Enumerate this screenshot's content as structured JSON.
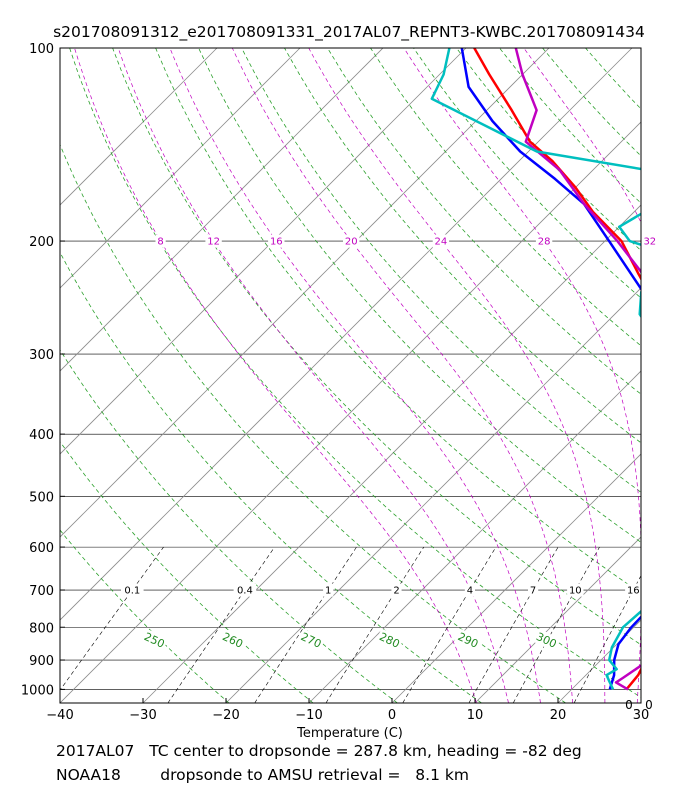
{
  "chart_data": {
    "type": "line",
    "title": "s201708091312_e201708091331_2017AL07_REPNT3-KWBC.201708091434",
    "xlabel": "Temperature (C)",
    "ylabel": "",
    "xlim": [
      -40,
      30
    ],
    "ylim": [
      1050,
      100
    ],
    "y_scale": "log",
    "skew": "skew-T",
    "x_ticks": [
      "−40",
      "−30",
      "−20",
      "−10",
      "0",
      "10",
      "20",
      "30"
    ],
    "y_ticks": [
      "100",
      "200",
      "300",
      "400",
      "500",
      "600",
      "700",
      "800",
      "900",
      "1000"
    ],
    "isotherm_ticks": [
      -100,
      -90,
      -80,
      -70,
      -60,
      -50,
      -40,
      -30,
      -20,
      -10,
      0,
      10,
      20,
      30
    ],
    "mixing_ratio_labels": [
      "0.1",
      "0.4",
      "1",
      "2",
      "4",
      "7",
      "10",
      "16"
    ],
    "mixing_ratio_values": [
      0.1,
      0.4,
      1,
      2,
      4,
      7,
      10,
      16
    ],
    "dry_adiabat_labels": [
      "250",
      "260",
      "270",
      "280",
      "290",
      "300"
    ],
    "dry_adiabat_values": [
      250,
      260,
      270,
      280,
      290,
      300,
      310,
      320,
      330,
      340,
      350,
      360,
      370,
      380,
      390,
      400,
      410,
      420
    ],
    "moist_adiabat_labels": [
      "8",
      "12",
      "16",
      "20",
      "24",
      "28",
      "32"
    ],
    "moist_adiabat_values": [
      8,
      12,
      16,
      20,
      24,
      28,
      32
    ],
    "corner_labels": [
      "0",
      "0"
    ],
    "grid": true,
    "colors": {
      "isotherm": "#8c8c8c",
      "isobar": "#000000",
      "dry_adiabat": "#2ca02c",
      "moist_adiabat": "#c000c0",
      "mixing_ratio": "#000000",
      "dry_adiabat_label": "#228b22",
      "moist_adiabat_label": "#c000c0"
    },
    "series": [
      {
        "color": "#ff0000",
        "points": [
          [
            1000,
            26.6
          ],
          [
            950,
            26.3
          ],
          [
            900,
            25.4
          ],
          [
            850,
            25.4
          ],
          [
            800,
            25.1
          ],
          [
            750,
            24.3
          ],
          [
            700,
            23.8
          ],
          [
            650,
            22.3
          ],
          [
            600,
            20.6
          ],
          [
            550,
            18.6
          ],
          [
            500,
            16.6
          ],
          [
            450,
            13.6
          ],
          [
            400,
            8.5
          ],
          [
            350,
            1.5
          ],
          [
            300,
            -6.5
          ],
          [
            275,
            -11.5
          ],
          [
            250,
            -16.5
          ],
          [
            225,
            -22
          ],
          [
            200,
            -28
          ],
          [
            180,
            -35
          ],
          [
            165,
            -40
          ],
          [
            150,
            -46
          ],
          [
            140,
            -51
          ],
          [
            125,
            -57
          ],
          [
            110,
            -64
          ],
          [
            100,
            -69
          ]
        ]
      },
      {
        "color": "#0000ff",
        "points": [
          [
            1000,
            24.6
          ],
          [
            950,
            23.4
          ],
          [
            900,
            21.6
          ],
          [
            850,
            20.2
          ],
          [
            800,
            19.7
          ],
          [
            750,
            19.6
          ],
          [
            700,
            19.3
          ],
          [
            650,
            17.6
          ],
          [
            600,
            16.2
          ],
          [
            550,
            14.5
          ],
          [
            500,
            12.6
          ],
          [
            450,
            9.3
          ],
          [
            400,
            4.8
          ],
          [
            350,
            -1.8
          ],
          [
            300,
            -8.5
          ],
          [
            250,
            -17
          ],
          [
            200,
            -29.5
          ],
          [
            175,
            -37
          ],
          [
            160,
            -43.5
          ],
          [
            145,
            -51
          ],
          [
            130,
            -58
          ],
          [
            115,
            -65
          ],
          [
            100,
            -70.5
          ]
        ]
      },
      {
        "color": "#c000c0",
        "points": [
          [
            1000,
            26.8
          ],
          [
            975,
            24.5
          ],
          [
            960,
            24.8
          ],
          [
            900,
            25.8
          ],
          [
            850,
            25
          ],
          [
            800,
            23.8
          ],
          [
            750,
            20.6
          ],
          [
            700,
            18.5
          ],
          [
            650,
            19.8
          ],
          [
            600,
            17.2
          ],
          [
            550,
            15.5
          ],
          [
            500,
            13.7
          ],
          [
            450,
            12.5
          ],
          [
            400,
            7.5
          ],
          [
            350,
            1.2
          ],
          [
            300,
            -6.5
          ],
          [
            250,
            -16
          ],
          [
            240,
            -17.3
          ],
          [
            225,
            -21.5
          ],
          [
            200,
            -28.5
          ],
          [
            175,
            -37
          ],
          [
            155,
            -44
          ],
          [
            140,
            -51.5
          ],
          [
            125,
            -54
          ],
          [
            110,
            -60
          ],
          [
            100,
            -64
          ]
        ]
      },
      {
        "color": "#00bfbf",
        "points": [
          [
            1000,
            25
          ],
          [
            970,
            23.5
          ],
          [
            950,
            22.5
          ],
          [
            930,
            23
          ],
          [
            900,
            21
          ],
          [
            860,
            19.8
          ],
          [
            800,
            18.7
          ],
          [
            750,
            19
          ],
          [
            700,
            19.5
          ],
          [
            650,
            16.8
          ],
          [
            600,
            14.5
          ],
          [
            550,
            12.5
          ],
          [
            525,
            10.5
          ],
          [
            500,
            10
          ],
          [
            450,
            5.5
          ],
          [
            430,
            5
          ],
          [
            400,
            1.5
          ],
          [
            350,
            -3.5
          ],
          [
            300,
            -9
          ],
          [
            260,
            -17
          ],
          [
            240,
            -19.5
          ],
          [
            220,
            -14
          ],
          [
            200,
            -27
          ],
          [
            190,
            -30
          ],
          [
            160,
            -26
          ],
          [
            145,
            -49
          ],
          [
            120,
            -68
          ],
          [
            110,
            -69.5
          ],
          [
            100,
            -72
          ]
        ]
      }
    ]
  },
  "footer": {
    "line1": "2017AL07   TC center to dropsonde = 287.8 km, heading = -82 deg",
    "line2": "NOAA18        dropsonde to AMSU retrieval =   8.1 km"
  }
}
